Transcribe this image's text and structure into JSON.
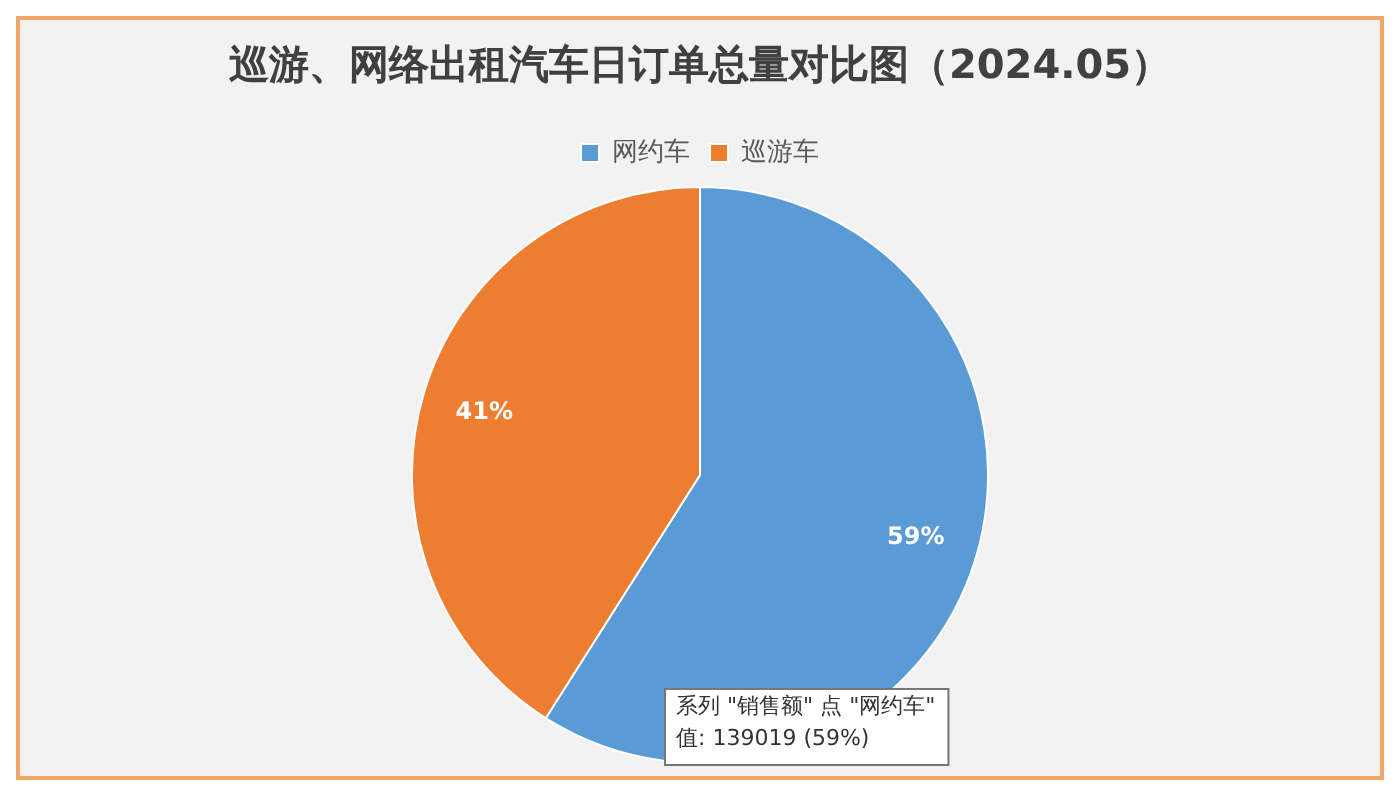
{
  "chart_data": {
    "type": "pie",
    "title": "巡游、网络出租汽车日订单总量对比图（2024.05）",
    "categories": [
      "网约车",
      "巡游车"
    ],
    "values": [
      59,
      41
    ],
    "colors": [
      "#5b9bd5",
      "#ed7d31"
    ],
    "value_labels": [
      "59%",
      "41%"
    ],
    "legend": "top",
    "annotations": [
      "系列 \"销售额\" 点 \"网约车\"",
      "值: 139019 (59%)"
    ]
  }
}
